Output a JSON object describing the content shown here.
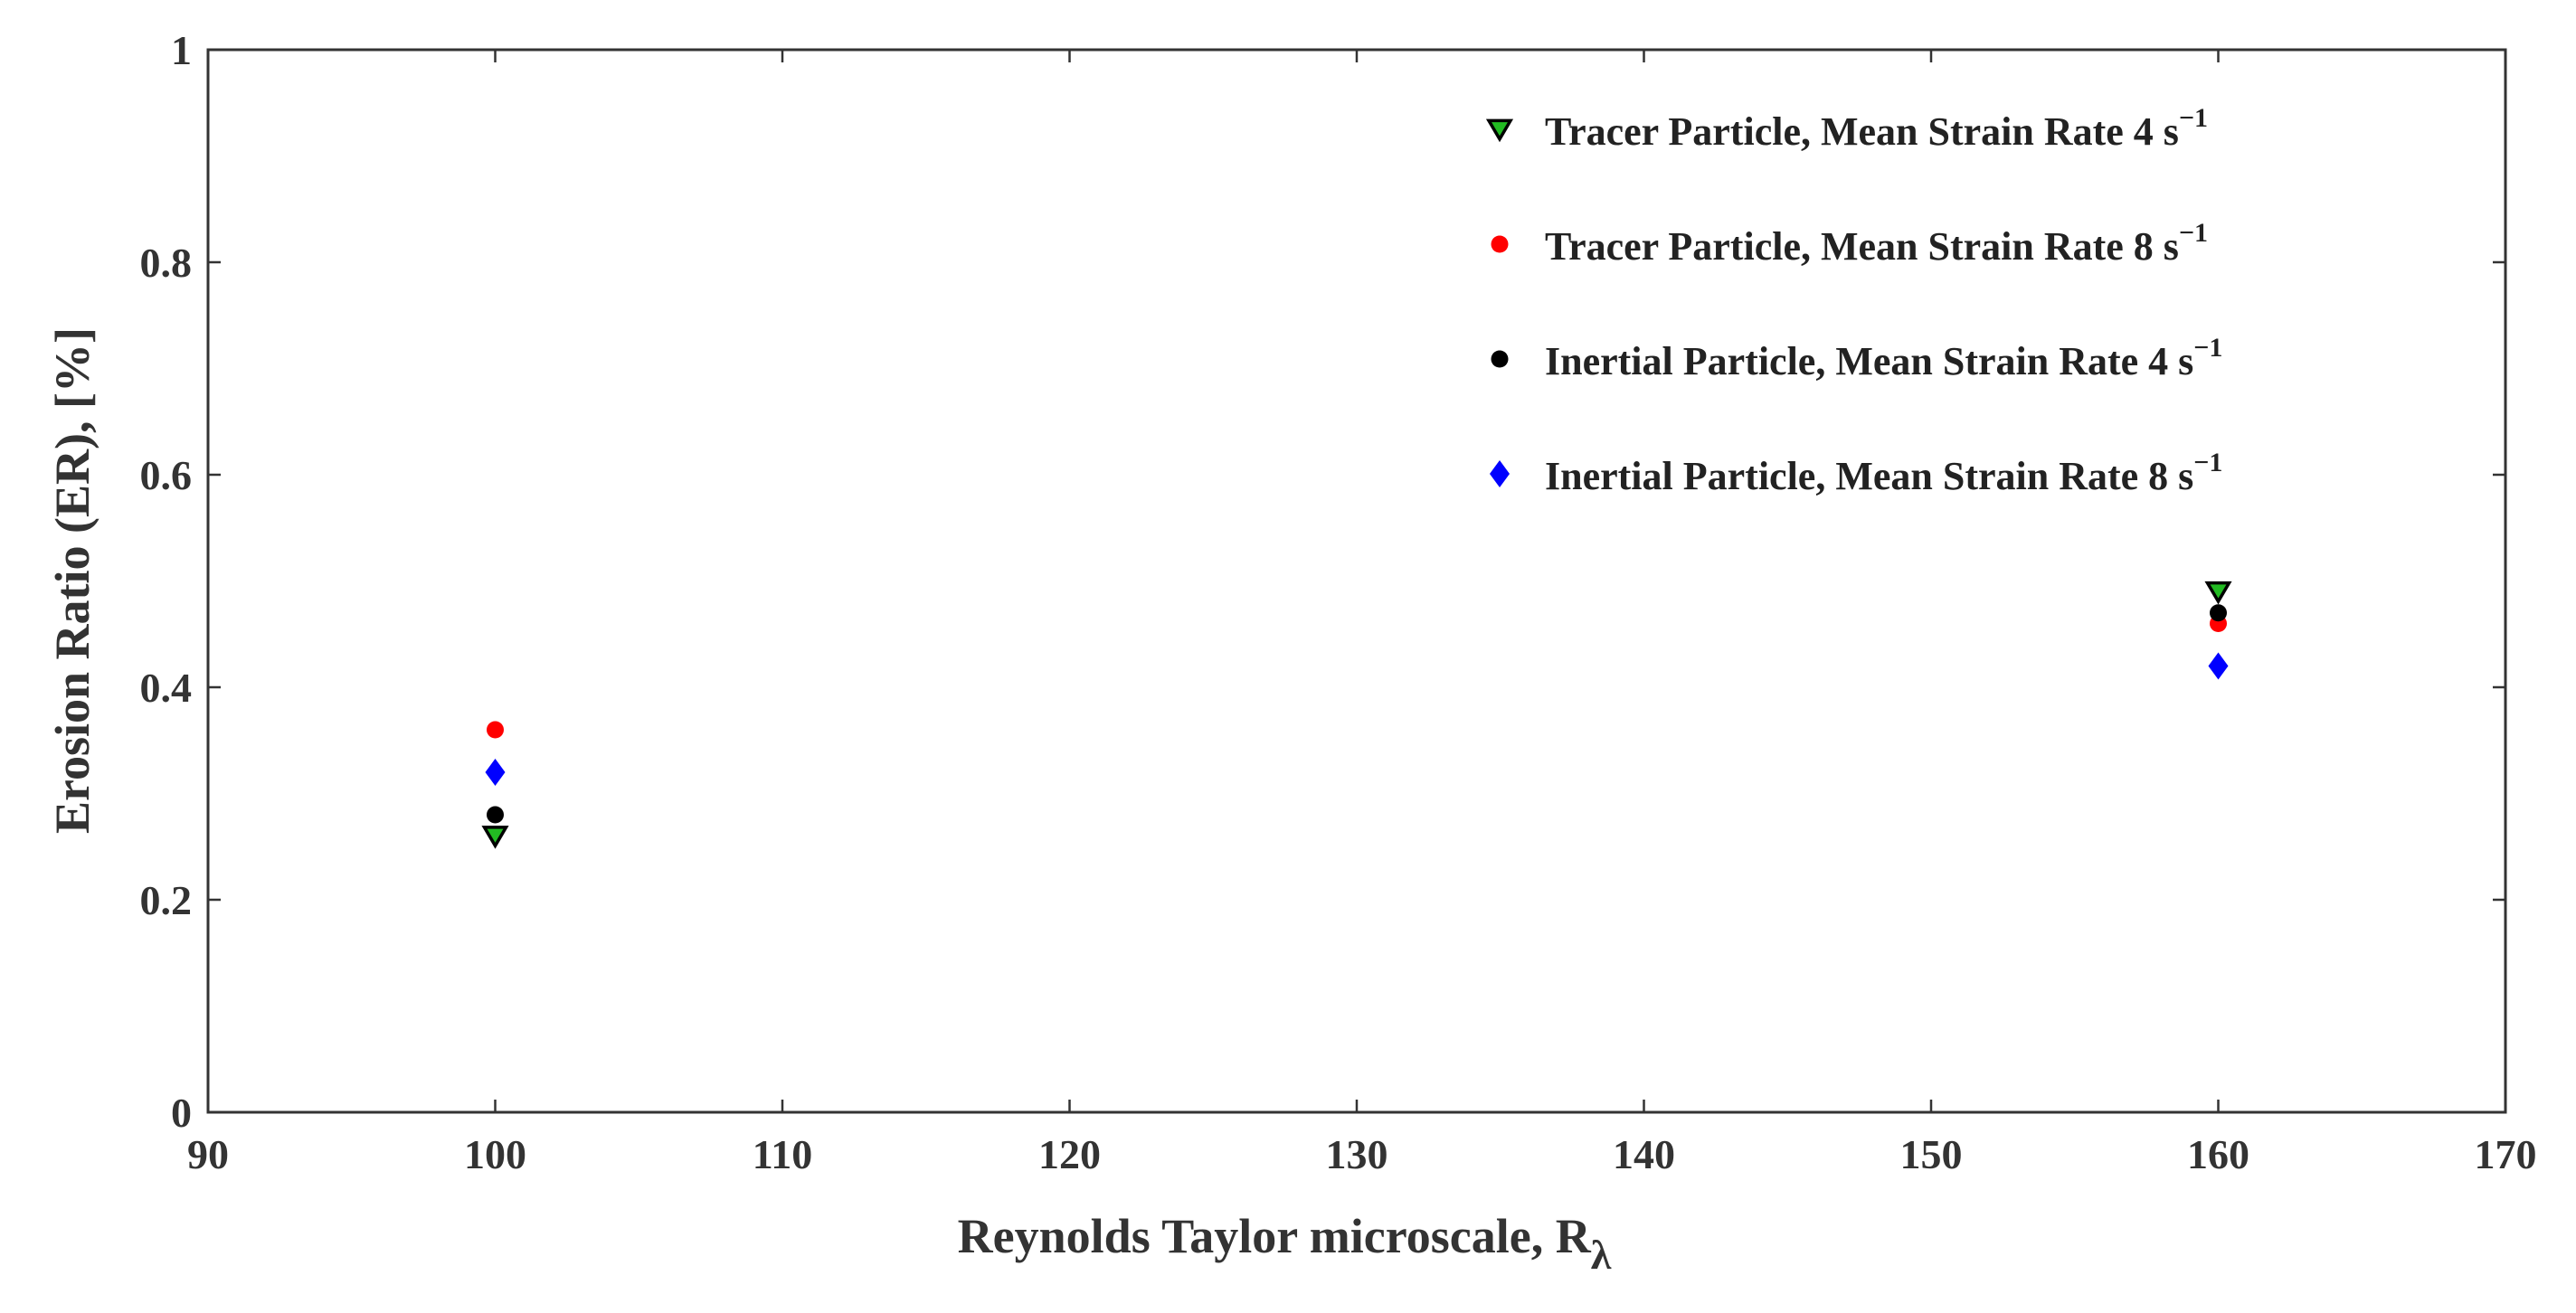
{
  "chart_data": {
    "type": "scatter",
    "xlabel": "Reynolds Taylor microscale, R",
    "xlabel_subscript": "λ",
    "ylabel": "Erosion Ratio (ER), [%]",
    "xlim": [
      90,
      170
    ],
    "ylim": [
      0,
      1
    ],
    "xticks": [
      "90",
      "100",
      "110",
      "120",
      "130",
      "140",
      "150",
      "160",
      "170"
    ],
    "yticks": [
      "0",
      "0.2",
      "0.4",
      "0.6",
      "0.8",
      "1"
    ],
    "grid": false,
    "legend_position": "top-right",
    "series": [
      {
        "name": "Tracer Particle, Mean Strain Rate 4 s",
        "unit_superscript": "−1",
        "marker": "triangle-down",
        "color": "#22bb22",
        "edge_color": "#000000",
        "x": [
          100,
          160
        ],
        "y": [
          0.26,
          0.49
        ]
      },
      {
        "name": "Tracer Particle, Mean Strain Rate 8 s",
        "unit_superscript": "−1",
        "marker": "circle",
        "color": "#ff0000",
        "x": [
          100,
          160
        ],
        "y": [
          0.36,
          0.46
        ]
      },
      {
        "name": "Inertial Particle, Mean Strain Rate 4 s",
        "unit_superscript": "−1",
        "marker": "circle",
        "color": "#000000",
        "x": [
          100,
          160
        ],
        "y": [
          0.28,
          0.47
        ]
      },
      {
        "name": "Inertial Particle, Mean Strain Rate 8 s",
        "unit_superscript": "−1",
        "marker": "diamond",
        "color": "#0000ff",
        "x": [
          100,
          160
        ],
        "y": [
          0.32,
          0.42
        ]
      }
    ]
  }
}
